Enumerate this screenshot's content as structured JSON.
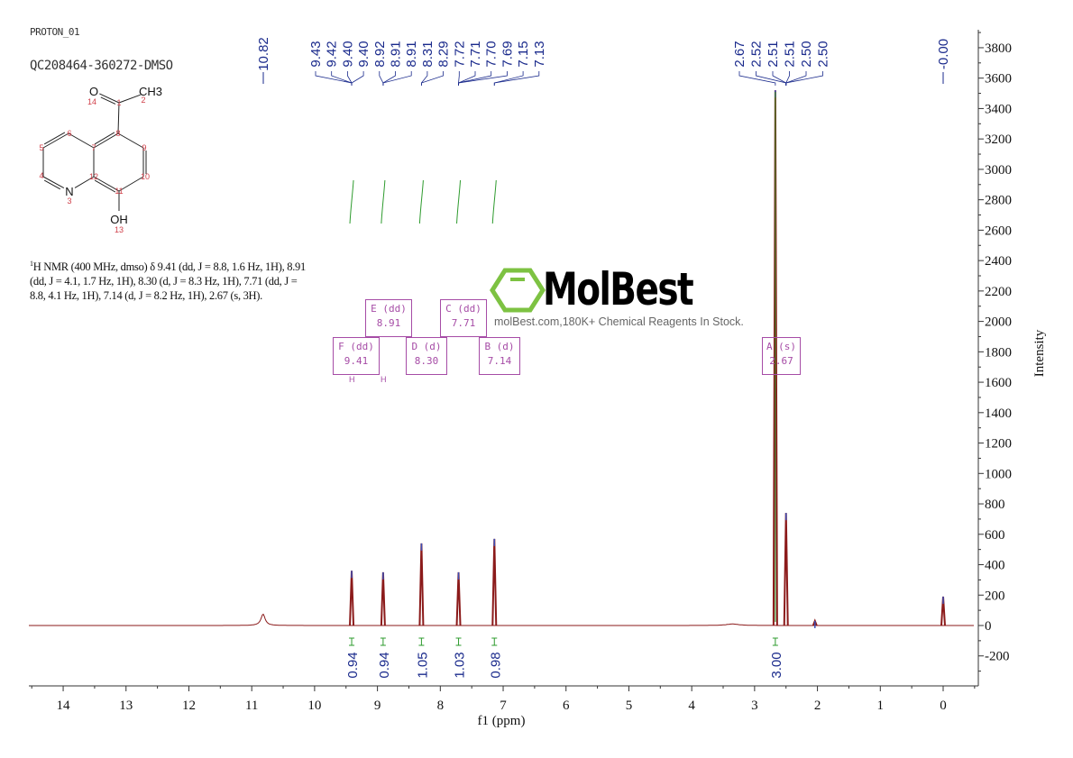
{
  "header": {
    "experiment": "PROTON_01",
    "sample": "QC208464-360272-DMSO"
  },
  "structure": {
    "atoms": [
      {
        "symbol": "O",
        "number": "14"
      },
      {
        "symbol": "CH3",
        "number": "2"
      },
      {
        "symbol": "N",
        "number": "3"
      },
      {
        "symbol": "OH",
        "number": "13"
      }
    ],
    "carbon_numbers": [
      "1",
      "4",
      "5",
      "6",
      "7",
      "8",
      "9",
      "10",
      "11",
      "12"
    ]
  },
  "description": {
    "sup": "1",
    "lines": [
      "H NMR (400 MHz, dmso) δ 9.41 (dd, J = 8.8, 1.6 Hz, 1H), 8.91",
      "(dd, J = 4.1, 1.7 Hz, 1H), 8.30 (d, J = 8.3 Hz, 1H), 7.71 (dd, J =",
      "8.8, 4.1 Hz, 1H), 7.14 (d, J = 8.2 Hz, 1H), 2.67 (s, 3H)."
    ]
  },
  "watermark": {
    "brand": "MolBest",
    "tagline": "molBest.com,180K+ Chemical Reagents In Stock."
  },
  "colors": {
    "spectrum": "#8b1a1a",
    "peak_label": "#1a2a8c",
    "integral": "#2e9b2e",
    "multiplet": "#a64ca6",
    "logo": "#7dc242"
  },
  "chart_data": {
    "type": "line",
    "title": "",
    "xlabel": "f1 (ppm)",
    "ylabel": "Intensity",
    "xlim": [
      14.55,
      -0.5
    ],
    "ylim": [
      -400,
      3920
    ],
    "xticks": [
      "14",
      "13",
      "12",
      "11",
      "10",
      "9",
      "8",
      "7",
      "6",
      "5",
      "4",
      "3",
      "2",
      "1",
      "0"
    ],
    "yticks": [
      "3800",
      "3600",
      "3400",
      "3200",
      "3000",
      "2800",
      "2600",
      "2400",
      "2200",
      "2000",
      "1800",
      "1600",
      "1400",
      "1200",
      "1000",
      "800",
      "600",
      "400",
      "200",
      "0",
      "-200"
    ],
    "peak_label_groups": [
      [
        "10.82"
      ],
      [
        "9.43",
        "9.42",
        "9.40",
        "9.40",
        "8.92",
        "8.91",
        "8.91",
        "8.31",
        "8.29",
        "7.72",
        "7.71",
        "7.70",
        "7.69",
        "7.15",
        "7.13"
      ],
      [
        "2.67",
        "2.52",
        "2.51",
        "2.51",
        "2.50",
        "2.50"
      ],
      [
        "-0.00"
      ]
    ],
    "peaks": [
      {
        "shift": 10.82,
        "height": 75
      },
      {
        "shift": 9.41,
        "height": 360
      },
      {
        "shift": 8.91,
        "height": 350
      },
      {
        "shift": 8.3,
        "height": 540
      },
      {
        "shift": 7.71,
        "height": 350
      },
      {
        "shift": 7.14,
        "height": 570
      },
      {
        "shift": 2.67,
        "height": 3520
      },
      {
        "shift": 2.5,
        "height": 740
      },
      {
        "shift": 2.04,
        "height": 30
      },
      {
        "shift": 0.0,
        "height": 190
      }
    ],
    "multiplets": [
      {
        "label": "F (dd)",
        "shift": "9.41"
      },
      {
        "label": "E (dd)",
        "shift": "8.91"
      },
      {
        "label": "D (d)",
        "shift": "8.30"
      },
      {
        "label": "C (dd)",
        "shift": "7.71"
      },
      {
        "label": "B (d)",
        "shift": "7.14"
      },
      {
        "label": "A (s)",
        "shift": "2.67"
      }
    ],
    "multiplet_marker": "H",
    "integrals": [
      {
        "shift": 9.41,
        "value": "0.94"
      },
      {
        "shift": 8.91,
        "value": "0.94"
      },
      {
        "shift": 8.3,
        "value": "1.05"
      },
      {
        "shift": 7.71,
        "value": "1.03"
      },
      {
        "shift": 7.14,
        "value": "0.98"
      },
      {
        "shift": 2.67,
        "value": "3.00"
      }
    ]
  }
}
